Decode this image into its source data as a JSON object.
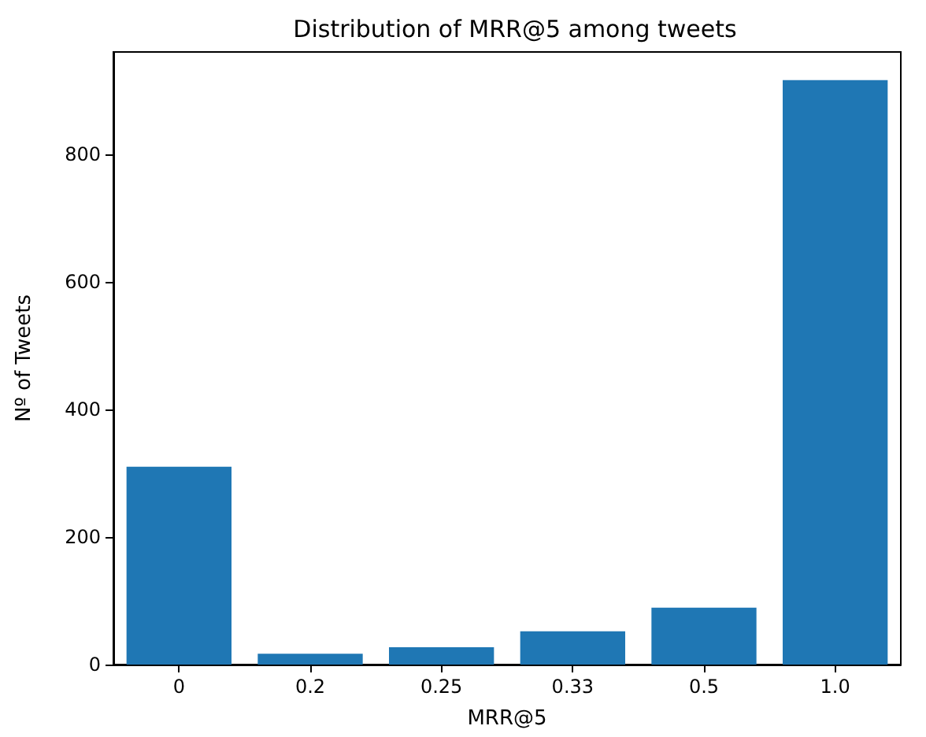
{
  "chart_data": {
    "type": "bar",
    "title": "Distribution of MRR@5 among tweets",
    "xlabel": "MRR@5",
    "ylabel": "Nº of Tweets",
    "categories": [
      "0",
      "0.2",
      "0.25",
      "0.33",
      "0.5",
      "1.0"
    ],
    "values": [
      310,
      17,
      27,
      52,
      89,
      916
    ],
    "color": "#1f77b4",
    "ylim": [
      0,
      960
    ],
    "yticks": [
      0,
      200,
      400,
      600,
      800
    ],
    "grid": false
  }
}
